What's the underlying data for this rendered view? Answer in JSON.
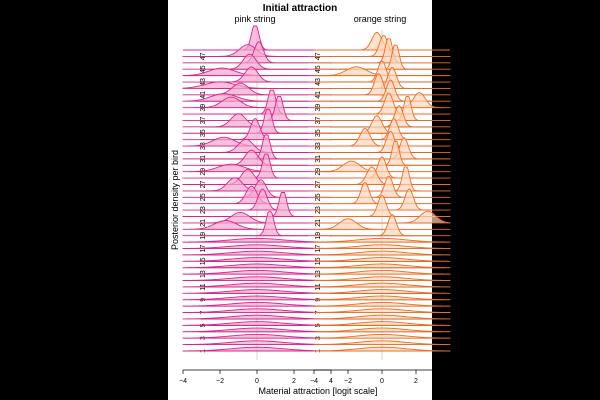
{
  "chart_data": {
    "type": "ridgeline",
    "title": "Initial attraction",
    "xlabel": "Material attraction [logit scale]",
    "ylabel": "Posterior density per bird",
    "xlim": [
      -4,
      4
    ],
    "x_ticks": [
      -4,
      -2,
      0,
      2,
      4
    ],
    "y_tick_labels": [
      "1",
      "3",
      "5",
      "7",
      "9",
      "11",
      "13",
      "15",
      "17",
      "19",
      "21",
      "23",
      "25",
      "27",
      "29",
      "31",
      "33",
      "35",
      "37",
      "39",
      "41",
      "43",
      "45",
      "47"
    ],
    "grid": false,
    "reference_line_x": 0,
    "panels": [
      {
        "title": "pink string",
        "color": "#e0218a",
        "fill": "#f2a7d0",
        "birds": [
          {
            "bird": 1,
            "mean": 0.0,
            "sd": 1.4
          },
          {
            "bird": 2,
            "mean": 0.0,
            "sd": 1.4
          },
          {
            "bird": 3,
            "mean": 0.0,
            "sd": 1.4
          },
          {
            "bird": 4,
            "mean": 0.0,
            "sd": 1.4
          },
          {
            "bird": 5,
            "mean": 0.0,
            "sd": 1.4
          },
          {
            "bird": 6,
            "mean": 0.0,
            "sd": 1.4
          },
          {
            "bird": 7,
            "mean": 0.0,
            "sd": 1.4
          },
          {
            "bird": 8,
            "mean": 0.0,
            "sd": 1.4
          },
          {
            "bird": 9,
            "mean": 0.0,
            "sd": 1.4
          },
          {
            "bird": 10,
            "mean": 0.0,
            "sd": 1.4
          },
          {
            "bird": 11,
            "mean": 0.0,
            "sd": 1.4
          },
          {
            "bird": 12,
            "mean": 0.0,
            "sd": 1.4
          },
          {
            "bird": 13,
            "mean": 0.0,
            "sd": 1.4
          },
          {
            "bird": 14,
            "mean": 0.0,
            "sd": 1.4
          },
          {
            "bird": 15,
            "mean": 0.0,
            "sd": 1.4
          },
          {
            "bird": 16,
            "mean": 0.0,
            "sd": 1.4
          },
          {
            "bird": 17,
            "mean": 0.0,
            "sd": 1.4
          },
          {
            "bird": 18,
            "mean": 0.0,
            "sd": 1.4
          },
          {
            "bird": 19,
            "mean": 0.7,
            "sd": 0.2
          },
          {
            "bird": 20,
            "mean": -1.7,
            "sd": 0.6
          },
          {
            "bird": 21,
            "mean": -0.9,
            "sd": 0.5
          },
          {
            "bird": 22,
            "mean": 1.4,
            "sd": 0.2
          },
          {
            "bird": 23,
            "mean": 0.3,
            "sd": 0.25
          },
          {
            "bird": 24,
            "mean": -0.3,
            "sd": 0.3
          },
          {
            "bird": 25,
            "mean": 0.2,
            "sd": 0.3
          },
          {
            "bird": 26,
            "mean": -1.2,
            "sd": 0.4
          },
          {
            "bird": 27,
            "mean": -0.5,
            "sd": 0.35
          },
          {
            "bird": 28,
            "mean": 0.5,
            "sd": 0.2
          },
          {
            "bird": 29,
            "mean": -1.4,
            "sd": 0.7
          },
          {
            "bird": 30,
            "mean": -0.3,
            "sd": 0.35
          },
          {
            "bird": 31,
            "mean": 0.5,
            "sd": 0.2
          },
          {
            "bird": 32,
            "mean": -0.6,
            "sd": 0.4
          },
          {
            "bird": 33,
            "mean": -1.8,
            "sd": 0.6
          },
          {
            "bird": 34,
            "mean": -0.1,
            "sd": 0.25
          },
          {
            "bird": 35,
            "mean": 0.6,
            "sd": 0.2
          },
          {
            "bird": 36,
            "mean": -1.0,
            "sd": 0.4
          },
          {
            "bird": 37,
            "mean": 1.2,
            "sd": 0.2
          },
          {
            "bird": 38,
            "mean": 0.8,
            "sd": 0.2
          },
          {
            "bird": 39,
            "mean": -1.4,
            "sd": 0.5
          },
          {
            "bird": 40,
            "mean": -1.8,
            "sd": 0.7
          },
          {
            "bird": 41,
            "mean": -0.9,
            "sd": 0.45
          },
          {
            "bird": 42,
            "mean": -2.0,
            "sd": 0.8
          },
          {
            "bird": 43,
            "mean": -0.3,
            "sd": 0.35
          },
          {
            "bird": 44,
            "mean": -1.9,
            "sd": 0.7
          },
          {
            "bird": 45,
            "mean": -0.4,
            "sd": 0.35
          },
          {
            "bird": 46,
            "mean": 0.1,
            "sd": 0.25
          },
          {
            "bird": 47,
            "mean": -0.5,
            "sd": 0.45
          },
          {
            "bird": 48,
            "mean": -0.1,
            "sd": 0.2
          }
        ]
      },
      {
        "title": "orange string",
        "color": "#f26b1d",
        "fill": "#fcd6bc",
        "birds": [
          {
            "bird": 1,
            "mean": 0.0,
            "sd": 1.4
          },
          {
            "bird": 2,
            "mean": 0.0,
            "sd": 1.4
          },
          {
            "bird": 3,
            "mean": 0.0,
            "sd": 1.4
          },
          {
            "bird": 4,
            "mean": 0.0,
            "sd": 1.4
          },
          {
            "bird": 5,
            "mean": 0.0,
            "sd": 1.4
          },
          {
            "bird": 6,
            "mean": 0.0,
            "sd": 1.4
          },
          {
            "bird": 7,
            "mean": 0.0,
            "sd": 1.4
          },
          {
            "bird": 8,
            "mean": 0.0,
            "sd": 1.4
          },
          {
            "bird": 9,
            "mean": 0.0,
            "sd": 1.4
          },
          {
            "bird": 10,
            "mean": 0.0,
            "sd": 1.4
          },
          {
            "bird": 11,
            "mean": 0.0,
            "sd": 1.4
          },
          {
            "bird": 12,
            "mean": 0.0,
            "sd": 1.4
          },
          {
            "bird": 13,
            "mean": 0.0,
            "sd": 1.4
          },
          {
            "bird": 14,
            "mean": 0.0,
            "sd": 1.4
          },
          {
            "bird": 15,
            "mean": 0.0,
            "sd": 1.4
          },
          {
            "bird": 16,
            "mean": 0.0,
            "sd": 1.4
          },
          {
            "bird": 17,
            "mean": 0.0,
            "sd": 1.4
          },
          {
            "bird": 18,
            "mean": 0.0,
            "sd": 1.4
          },
          {
            "bird": 19,
            "mean": 0.6,
            "sd": 0.25
          },
          {
            "bird": 20,
            "mean": -2.0,
            "sd": 0.5
          },
          {
            "bird": 21,
            "mean": 2.7,
            "sd": 0.45
          },
          {
            "bird": 22,
            "mean": 0.0,
            "sd": 0.25
          },
          {
            "bird": 23,
            "mean": 1.6,
            "sd": 0.25
          },
          {
            "bird": 24,
            "mean": -1.0,
            "sd": 0.25
          },
          {
            "bird": 25,
            "mean": 0.4,
            "sd": 0.25
          },
          {
            "bird": 26,
            "mean": 1.4,
            "sd": 0.2
          },
          {
            "bird": 27,
            "mean": -0.6,
            "sd": 0.3
          },
          {
            "bird": 28,
            "mean": 0.0,
            "sd": 0.25
          },
          {
            "bird": 29,
            "mean": -1.8,
            "sd": 0.5
          },
          {
            "bird": 30,
            "mean": 0.8,
            "sd": 0.2
          },
          {
            "bird": 31,
            "mean": 1.3,
            "sd": 0.25
          },
          {
            "bird": 32,
            "mean": 0.5,
            "sd": 0.25
          },
          {
            "bird": 33,
            "mean": -1.0,
            "sd": 0.3
          },
          {
            "bird": 34,
            "mean": 0.7,
            "sd": 0.25
          },
          {
            "bird": 35,
            "mean": -0.3,
            "sd": 0.3
          },
          {
            "bird": 36,
            "mean": 1.0,
            "sd": 0.25
          },
          {
            "bird": 37,
            "mean": 1.5,
            "sd": 0.2
          },
          {
            "bird": 38,
            "mean": 0.4,
            "sd": 0.25
          },
          {
            "bird": 39,
            "mean": 2.2,
            "sd": 0.35
          },
          {
            "bird": 40,
            "mean": 0.5,
            "sd": 0.25
          },
          {
            "bird": 41,
            "mean": -0.2,
            "sd": 0.25
          },
          {
            "bird": 42,
            "mean": 0.6,
            "sd": 0.25
          },
          {
            "bird": 43,
            "mean": 0.0,
            "sd": 0.25
          },
          {
            "bird": 44,
            "mean": -1.5,
            "sd": 0.6
          },
          {
            "bird": 45,
            "mean": 0.8,
            "sd": 0.2
          },
          {
            "bird": 46,
            "mean": 0.4,
            "sd": 0.2
          },
          {
            "bird": 47,
            "mean": 0.1,
            "sd": 0.25
          },
          {
            "bird": 48,
            "mean": -0.3,
            "sd": 0.3
          }
        ]
      }
    ]
  }
}
